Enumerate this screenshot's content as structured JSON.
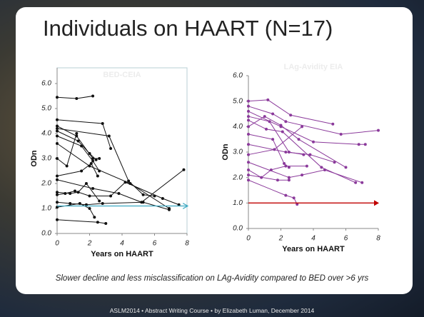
{
  "slide": {
    "title": "Individuals on HAART (N=17)",
    "caption": "Slower decline and less misclassification on LAg-Avidity compared to BED over >6 yrs",
    "footer": "ASLM2014  •  Abstract Writing Course  •  by Elizabeth Luman, December 2014"
  },
  "chart_data": [
    {
      "type": "line",
      "title": "BED-CEIA",
      "x_label": "Years on HAART",
      "y_label": "ODn",
      "xlim": [
        0,
        8
      ],
      "ylim": [
        0,
        6
      ],
      "xticks": [
        0,
        2,
        4,
        6,
        8
      ],
      "yticks": [
        {
          "value": 0,
          "label": "0.0"
        },
        {
          "value": 1,
          "label": "1.0"
        },
        {
          "value": 2,
          "label": "2.0"
        },
        {
          "value": 3,
          "label": "3.0"
        },
        {
          "value": 4,
          "label": "4.0"
        },
        {
          "value": 5,
          "label": "5.0"
        },
        {
          "value": 6,
          "label": "6.0"
        }
      ],
      "frame": true,
      "reference_line": {
        "value": 1.1,
        "color": "#3aa8c1"
      },
      "series": [
        {
          "color": "#111111",
          "x": [
            0,
            1.2,
            2.2
          ],
          "values": [
            5.45,
            5.4,
            5.5
          ]
        },
        {
          "color": "#111111",
          "x": [
            0,
            2.8,
            3.3
          ],
          "values": [
            4.55,
            4.4,
            3.4
          ]
        },
        {
          "color": "#111111",
          "x": [
            0,
            1.2,
            2.2,
            2.6
          ],
          "values": [
            4.3,
            3.9,
            3.0,
            3.0
          ]
        },
        {
          "color": "#111111",
          "x": [
            0,
            3.2,
            4.4,
            5.3,
            6
          ],
          "values": [
            4.2,
            3.9,
            2.1,
            1.55,
            1.5
          ]
        },
        {
          "color": "#111111",
          "x": [
            0,
            1.3,
            2,
            2.4
          ],
          "values": [
            4.1,
            3.7,
            3.2,
            2.95
          ]
        },
        {
          "color": "#111111",
          "x": [
            0,
            1.5,
            2.2,
            2.6
          ],
          "values": [
            3.9,
            3.5,
            2.9,
            2.5
          ]
        },
        {
          "color": "#111111",
          "x": [
            0,
            2,
            4.5,
            6.9
          ],
          "values": [
            3.6,
            2.7,
            2.0,
            1.0
          ]
        },
        {
          "color": "#111111",
          "x": [
            0,
            0.6,
            1.2
          ],
          "values": [
            3.0,
            2.7,
            4.0
          ]
        },
        {
          "color": "#111111",
          "x": [
            0,
            1.5,
            2.1,
            2.5
          ],
          "values": [
            2.3,
            2.5,
            2.8,
            2.3
          ]
        },
        {
          "color": "#111111",
          "x": [
            0,
            2.2,
            3.8,
            5.2,
            7.8
          ],
          "values": [
            2.15,
            1.8,
            1.6,
            1.25,
            2.55
          ]
        },
        {
          "color": "#111111",
          "x": [
            0,
            0.8,
            1.3,
            1.8,
            2.6
          ],
          "values": [
            1.65,
            1.6,
            1.65,
            2.0,
            1.3
          ]
        },
        {
          "color": "#111111",
          "x": [
            0,
            0.5,
            1.1,
            2,
            3.3,
            4.2,
            6.5,
            7.5
          ],
          "values": [
            1.55,
            1.6,
            1.7,
            1.5,
            1.5,
            2.05,
            1.4,
            1.15
          ]
        },
        {
          "color": "#111111",
          "x": [
            0,
            0.8,
            1.8,
            2.8,
            5.3,
            6.9
          ],
          "values": [
            1.25,
            1.2,
            1.15,
            1.2,
            1.25,
            0.95
          ]
        },
        {
          "color": "#111111",
          "x": [
            0,
            1.4,
            2,
            2.3
          ],
          "values": [
            1.05,
            1.2,
            1.0,
            0.65
          ]
        },
        {
          "color": "#111111",
          "x": [
            0,
            2.5,
            3
          ],
          "values": [
            0.55,
            0.45,
            0.4
          ]
        }
      ]
    },
    {
      "type": "line",
      "title": "LAg-Avidity EIA",
      "x_label": "Years on HAART",
      "y_label": "ODn",
      "xlim": [
        0,
        8
      ],
      "ylim": [
        0,
        6
      ],
      "xticks": [
        0,
        2,
        4,
        6,
        8
      ],
      "yticks": [
        {
          "value": 0,
          "label": "0.0"
        },
        {
          "value": 1,
          "label": "1.0"
        },
        {
          "value": 2,
          "label": "2.0"
        },
        {
          "value": 3,
          "label": "3.0"
        },
        {
          "value": 4,
          "label": "4.0"
        },
        {
          "value": 5,
          "label": "5.0"
        },
        {
          "value": 6,
          "label": "6.0"
        }
      ],
      "frame": false,
      "reference_line": {
        "value": 1.0,
        "color": "#c00000"
      },
      "series": [
        {
          "color": "#8b3a9b",
          "x": [
            0,
            1.2,
            2.6,
            5.2
          ],
          "values": [
            5.0,
            5.05,
            4.45,
            4.1
          ]
        },
        {
          "color": "#8b3a9b",
          "x": [
            0,
            1.5,
            2.3,
            5.7,
            8
          ],
          "values": [
            4.8,
            4.5,
            4.2,
            3.7,
            3.85
          ]
        },
        {
          "color": "#8b3a9b",
          "x": [
            0,
            2,
            4,
            6.8,
            7.2
          ],
          "values": [
            4.6,
            4.0,
            3.4,
            3.3,
            3.3
          ]
        },
        {
          "color": "#8b3a9b",
          "x": [
            0,
            1.3,
            2.5,
            3.4
          ],
          "values": [
            4.4,
            4.2,
            3.0,
            2.9
          ]
        },
        {
          "color": "#8b3a9b",
          "x": [
            0,
            1.1,
            2.1,
            4.5,
            6.6
          ],
          "values": [
            4.25,
            3.9,
            3.8,
            2.4,
            1.8
          ]
        },
        {
          "color": "#8b3a9b",
          "x": [
            0,
            1,
            2,
            3.1,
            6
          ],
          "values": [
            4.0,
            4.4,
            4.05,
            3.5,
            2.4
          ]
        },
        {
          "color": "#8b3a9b",
          "x": [
            0,
            1.5,
            2.2,
            2.5
          ],
          "values": [
            3.7,
            3.5,
            2.55,
            2.4
          ]
        },
        {
          "color": "#8b3a9b",
          "x": [
            0,
            2.3,
            3.8,
            5.3
          ],
          "values": [
            3.3,
            3.0,
            2.9,
            2.6
          ]
        },
        {
          "color": "#8b3a9b",
          "x": [
            0,
            1.6,
            3.3
          ],
          "values": [
            2.9,
            3.1,
            4.0
          ]
        },
        {
          "color": "#8b3a9b",
          "x": [
            0,
            2.5,
            3.3,
            4.7,
            7
          ],
          "values": [
            2.6,
            2.0,
            2.1,
            2.3,
            1.8
          ]
        },
        {
          "color": "#8b3a9b",
          "x": [
            0,
            0.8,
            1.4,
            2.3,
            3.6
          ],
          "values": [
            2.3,
            2.0,
            2.3,
            2.45,
            2.45
          ]
        },
        {
          "color": "#8b3a9b",
          "x": [
            0,
            1.8,
            2.5
          ],
          "values": [
            2.1,
            1.9,
            1.9
          ]
        },
        {
          "color": "#8b3a9b",
          "x": [
            0,
            2.3,
            2.8,
            3
          ],
          "values": [
            1.9,
            1.3,
            1.2,
            0.95
          ]
        }
      ]
    }
  ]
}
